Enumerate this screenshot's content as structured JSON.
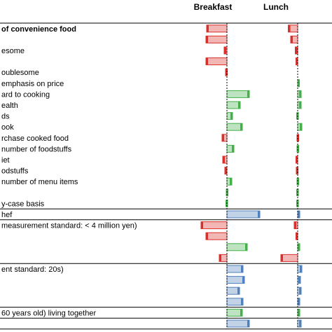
{
  "colors": {
    "red": "#d9302c",
    "green": "#43b04a",
    "blue": "#4f81bd"
  },
  "chart_data": {
    "type": "bar",
    "orientation": "horizontal",
    "columns": [
      "Breakfast",
      "Lunch"
    ],
    "rows": [
      {
        "label": "of convenience food",
        "bold": true,
        "breakfast": -0.58,
        "lunch": -0.27,
        "color": "red",
        "separator_above": true
      },
      {
        "label": "",
        "breakfast": -0.6,
        "lunch": -0.2,
        "color": "red"
      },
      {
        "label": "esome",
        "breakfast": -0.08,
        "lunch": -0.07,
        "color": "red"
      },
      {
        "label": "",
        "breakfast": -0.6,
        "lunch": -0.05,
        "color": "red"
      },
      {
        "label": "oublesome",
        "breakfast": -0.04,
        "lunch": 0,
        "color": "red"
      },
      {
        "label": "emphasis on price",
        "breakfast": 0,
        "lunch": 0.05,
        "color": "green"
      },
      {
        "label": "ard to cooking",
        "breakfast": 0.64,
        "lunch": 0.1,
        "color": "green"
      },
      {
        "label": "ealth",
        "breakfast": 0.38,
        "lunch": 0.1,
        "color": "green"
      },
      {
        "label": "ds",
        "breakfast": 0.16,
        "lunch": 0.02,
        "color": "green"
      },
      {
        "label": "ook",
        "breakfast": 0.44,
        "lunch": 0.12,
        "color": "green"
      },
      {
        "label": "rchase cooked food",
        "breakfast": -0.14,
        "lunch": 0.03,
        "color": "red"
      },
      {
        "label": "number of foodstuffs",
        "breakfast": 0.2,
        "lunch": 0.03,
        "color": "green"
      },
      {
        "label": "iet",
        "breakfast": -0.12,
        "lunch": -0.05,
        "color": "red"
      },
      {
        "label": "odstuffs",
        "breakfast": -0.06,
        "lunch": -0.04,
        "color": "red"
      },
      {
        "label": "number of menu items",
        "breakfast": 0.14,
        "lunch": 0.03,
        "color": "green"
      },
      {
        "label": "",
        "breakfast": 0.03,
        "lunch": 0.02,
        "color": "green"
      },
      {
        "label": "y-case basis",
        "breakfast": 0.02,
        "lunch": 0.02,
        "color": "green"
      },
      {
        "label": "hef",
        "breakfast": 0.94,
        "lunch": 0.06,
        "color": "blue",
        "separator_above": true
      },
      {
        "label": "measurement standard: < 4 million yen)",
        "breakfast": -0.74,
        "lunch": -0.1,
        "color": "red",
        "separator_above": true
      },
      {
        "label": "",
        "breakfast": -0.6,
        "lunch": -0.05,
        "color": "red"
      },
      {
        "label": "",
        "breakfast": 0.58,
        "lunch": 0.06,
        "color": "green"
      },
      {
        "label": "",
        "breakfast": -0.22,
        "lunch": -0.48,
        "color": "red"
      },
      {
        "label": "ent standard: 20s)",
        "breakfast": 0.46,
        "lunch": 0.12,
        "color": "blue",
        "separator_above": true
      },
      {
        "label": "",
        "breakfast": 0.5,
        "lunch": 0.08,
        "color": "blue"
      },
      {
        "label": "",
        "breakfast": 0.36,
        "lunch": 0.1,
        "color": "blue"
      },
      {
        "label": "",
        "breakfast": 0.46,
        "lunch": 0.06,
        "color": "blue"
      },
      {
        "label": "60 years old) living together",
        "breakfast": 0.44,
        "lunch": 0.06,
        "color": "green",
        "separator_above": true
      },
      {
        "label": "",
        "breakfast": 0.64,
        "lunch": 0.1,
        "color": "blue",
        "separator_above": true
      }
    ],
    "axis_range": [
      -1,
      1
    ],
    "grid": false,
    "legend": "none"
  }
}
